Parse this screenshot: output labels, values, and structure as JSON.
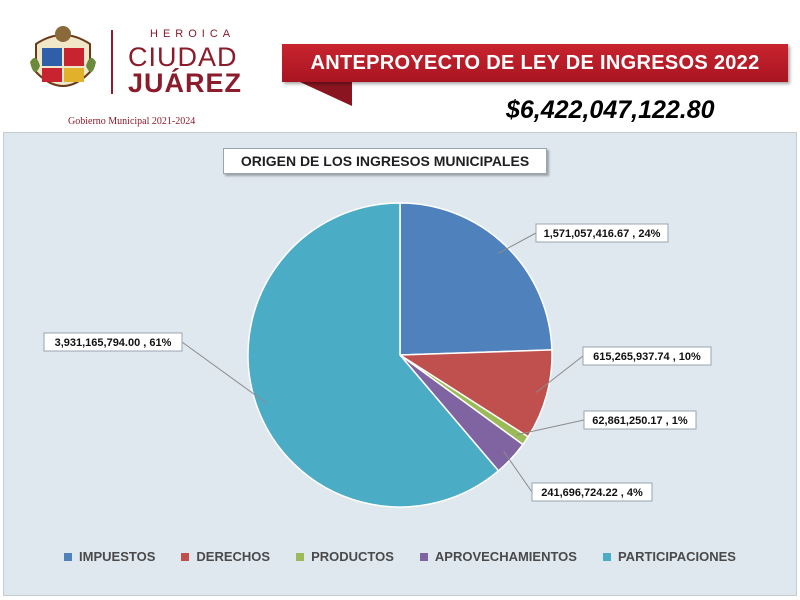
{
  "header": {
    "heroica": "HEROICA",
    "ciudad": "CIUDAD",
    "juarez": "JUÁREZ",
    "gobierno": "Gobierno Municipal 2021-2024",
    "banner": "ANTEPROYECTO DE LEY DE INGRESOS 2022",
    "total": "$6,422,047,122.80"
  },
  "chart_data": {
    "type": "pie",
    "title": "ORIGEN DE LOS INGRESOS MUNICIPALES",
    "categories": [
      "IMPUESTOS",
      "DERECHOS",
      "PRODUCTOS",
      "APROVECHAMIENTOS",
      "PARTICIPACIONES"
    ],
    "values": [
      1571057416.67,
      615265937.74,
      62861250.17,
      241696724.22,
      3931165794.0
    ],
    "percents": [
      24,
      10,
      1,
      4,
      61
    ],
    "labels": [
      "1,571,057,416.67 , 24%",
      "615,265,937.74 , 10%",
      "62,861,250.17 , 1%",
      "241,696,724.22 , 4%",
      "3,931,165,794.00 , 61%"
    ],
    "colors": [
      "#4f81bd",
      "#c0504d",
      "#9bbb59",
      "#8064a2",
      "#4bacc6"
    ],
    "legend_position": "bottom"
  }
}
